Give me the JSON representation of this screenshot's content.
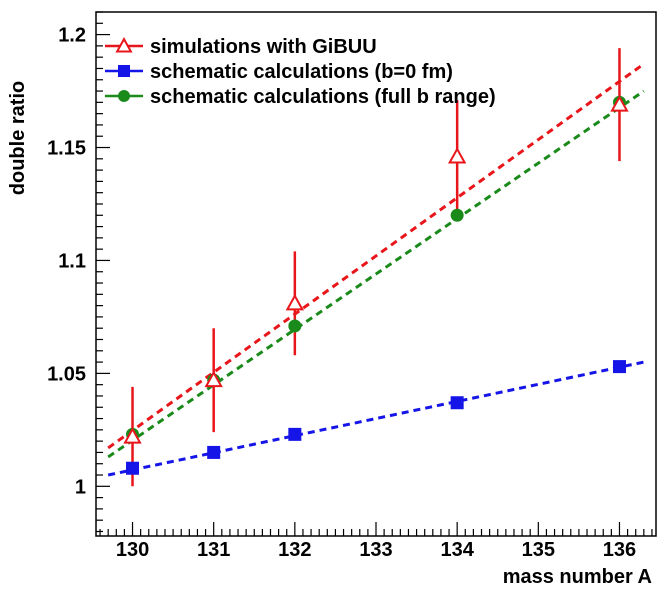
{
  "chart_data": {
    "type": "scatter",
    "xlabel": "mass number A",
    "ylabel": "double ratio",
    "xlim": [
      129.55,
      136.45
    ],
    "ylim": [
      0.978,
      1.21
    ],
    "x_ticks": [
      130,
      131,
      132,
      133,
      134,
      135,
      136
    ],
    "x_tick_labels": [
      "130",
      "131",
      "132",
      "133",
      "134",
      "135",
      "136"
    ],
    "y_ticks": [
      1.0,
      1.05,
      1.1,
      1.15,
      1.2
    ],
    "y_tick_labels": [
      "1",
      "1.05",
      "1.1",
      "1.15",
      "1.2"
    ],
    "grid": false,
    "legend_position": "top-left",
    "series": [
      {
        "name": "simulations with GiBUU",
        "color": "#e8161b",
        "marker": "open-triangle",
        "x": [
          130,
          131,
          132,
          134,
          136
        ],
        "y": [
          1.022,
          1.047,
          1.081,
          1.146,
          1.169
        ],
        "err": [
          0.022,
          0.023,
          0.023,
          0.025,
          0.025
        ],
        "fit": {
          "x": [
            129.7,
            136.3
          ],
          "y": [
            1.017,
            1.187
          ]
        }
      },
      {
        "name": "schematic calculations (b=0 fm)",
        "color": "#1515e8",
        "marker": "filled-square",
        "x": [
          130,
          131,
          132,
          134,
          136
        ],
        "y": [
          1.008,
          1.015,
          1.023,
          1.037,
          1.053
        ],
        "fit": {
          "x": [
            129.7,
            136.3
          ],
          "y": [
            1.005,
            1.055
          ]
        }
      },
      {
        "name": "schematic calculations (full b range)",
        "color": "#1a8a1a",
        "marker": "filled-circle",
        "x": [
          130,
          131,
          132,
          134,
          136
        ],
        "y": [
          1.023,
          1.047,
          1.071,
          1.12,
          1.17
        ],
        "fit": {
          "x": [
            129.7,
            136.3
          ],
          "y": [
            1.013,
            1.175
          ]
        }
      }
    ]
  }
}
